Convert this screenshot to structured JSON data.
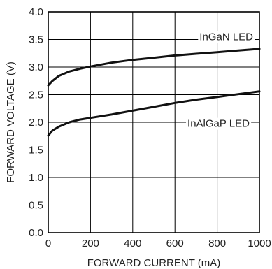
{
  "chart_data": {
    "type": "line",
    "xlabel": "FORWARD CURRENT (mA)",
    "ylabel": "FORWARD VOLTAGE (V)",
    "xlim": [
      0,
      1000
    ],
    "ylim": [
      0,
      4.0
    ],
    "xticks": [
      "0",
      "200",
      "400",
      "600",
      "800",
      "1000"
    ],
    "yticks": [
      "0.0",
      "0.5",
      "1.0",
      "1.5",
      "2.0",
      "2.5",
      "3.0",
      "3.5",
      "4.0"
    ],
    "grid": true,
    "series": [
      {
        "name": "InGaN LED",
        "x": [
          0,
          20,
          50,
          100,
          150,
          200,
          300,
          400,
          500,
          600,
          700,
          800,
          900,
          1000
        ],
        "y": [
          2.67,
          2.75,
          2.84,
          2.92,
          2.97,
          3.01,
          3.08,
          3.13,
          3.17,
          3.21,
          3.24,
          3.27,
          3.3,
          3.33
        ]
      },
      {
        "name": "InAlGaP LED",
        "x": [
          0,
          20,
          50,
          100,
          150,
          200,
          300,
          400,
          500,
          600,
          700,
          800,
          900,
          1000
        ],
        "y": [
          1.76,
          1.85,
          1.92,
          2.0,
          2.05,
          2.08,
          2.14,
          2.21,
          2.28,
          2.35,
          2.41,
          2.46,
          2.51,
          2.56
        ]
      }
    ]
  }
}
